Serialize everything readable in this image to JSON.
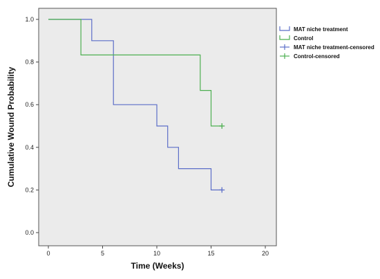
{
  "chart_data": {
    "type": "line",
    "step": true,
    "xlabel": "Time (Weeks)",
    "ylabel": "Cumulative Wound Probability",
    "xlim": [
      0,
      20
    ],
    "ylim": [
      0,
      1
    ],
    "x_ticks": [
      0,
      5,
      10,
      15,
      20
    ],
    "y_ticks": [
      0.0,
      0.2,
      0.4,
      0.6,
      0.8,
      1.0
    ],
    "x_tick_labels": [
      "0",
      "5",
      "10",
      "15",
      "20"
    ],
    "y_tick_labels": [
      "0.0",
      "0.2",
      "0.4",
      "0.6",
      "0.8",
      "1.0"
    ],
    "grid": false,
    "legend_position": "right",
    "plot_background": "#ebebeb",
    "series": [
      {
        "name": "MAT niche treatment",
        "color": "#5b6dc8",
        "points": [
          [
            0,
            1.0
          ],
          [
            4,
            1.0
          ],
          [
            4,
            0.9
          ],
          [
            6,
            0.9
          ],
          [
            6,
            0.6
          ],
          [
            10,
            0.6
          ],
          [
            10,
            0.5
          ],
          [
            11,
            0.5
          ],
          [
            11,
            0.4
          ],
          [
            12,
            0.4
          ],
          [
            12,
            0.3
          ],
          [
            15,
            0.3
          ],
          [
            15,
            0.2
          ],
          [
            16,
            0.2
          ]
        ]
      },
      {
        "name": "Control",
        "color": "#4caf50",
        "points": [
          [
            0,
            1.0
          ],
          [
            3,
            1.0
          ],
          [
            3,
            0.833
          ],
          [
            14,
            0.833
          ],
          [
            14,
            0.667
          ],
          [
            15,
            0.667
          ],
          [
            15,
            0.5
          ],
          [
            16,
            0.5
          ]
        ]
      }
    ],
    "censored": [
      {
        "name": "MAT niche treatment-censored",
        "color": "#5b6dc8",
        "points": [
          [
            16,
            0.2
          ]
        ]
      },
      {
        "name": "Control-censored",
        "color": "#4caf50",
        "points": [
          [
            16,
            0.5
          ]
        ]
      }
    ]
  }
}
